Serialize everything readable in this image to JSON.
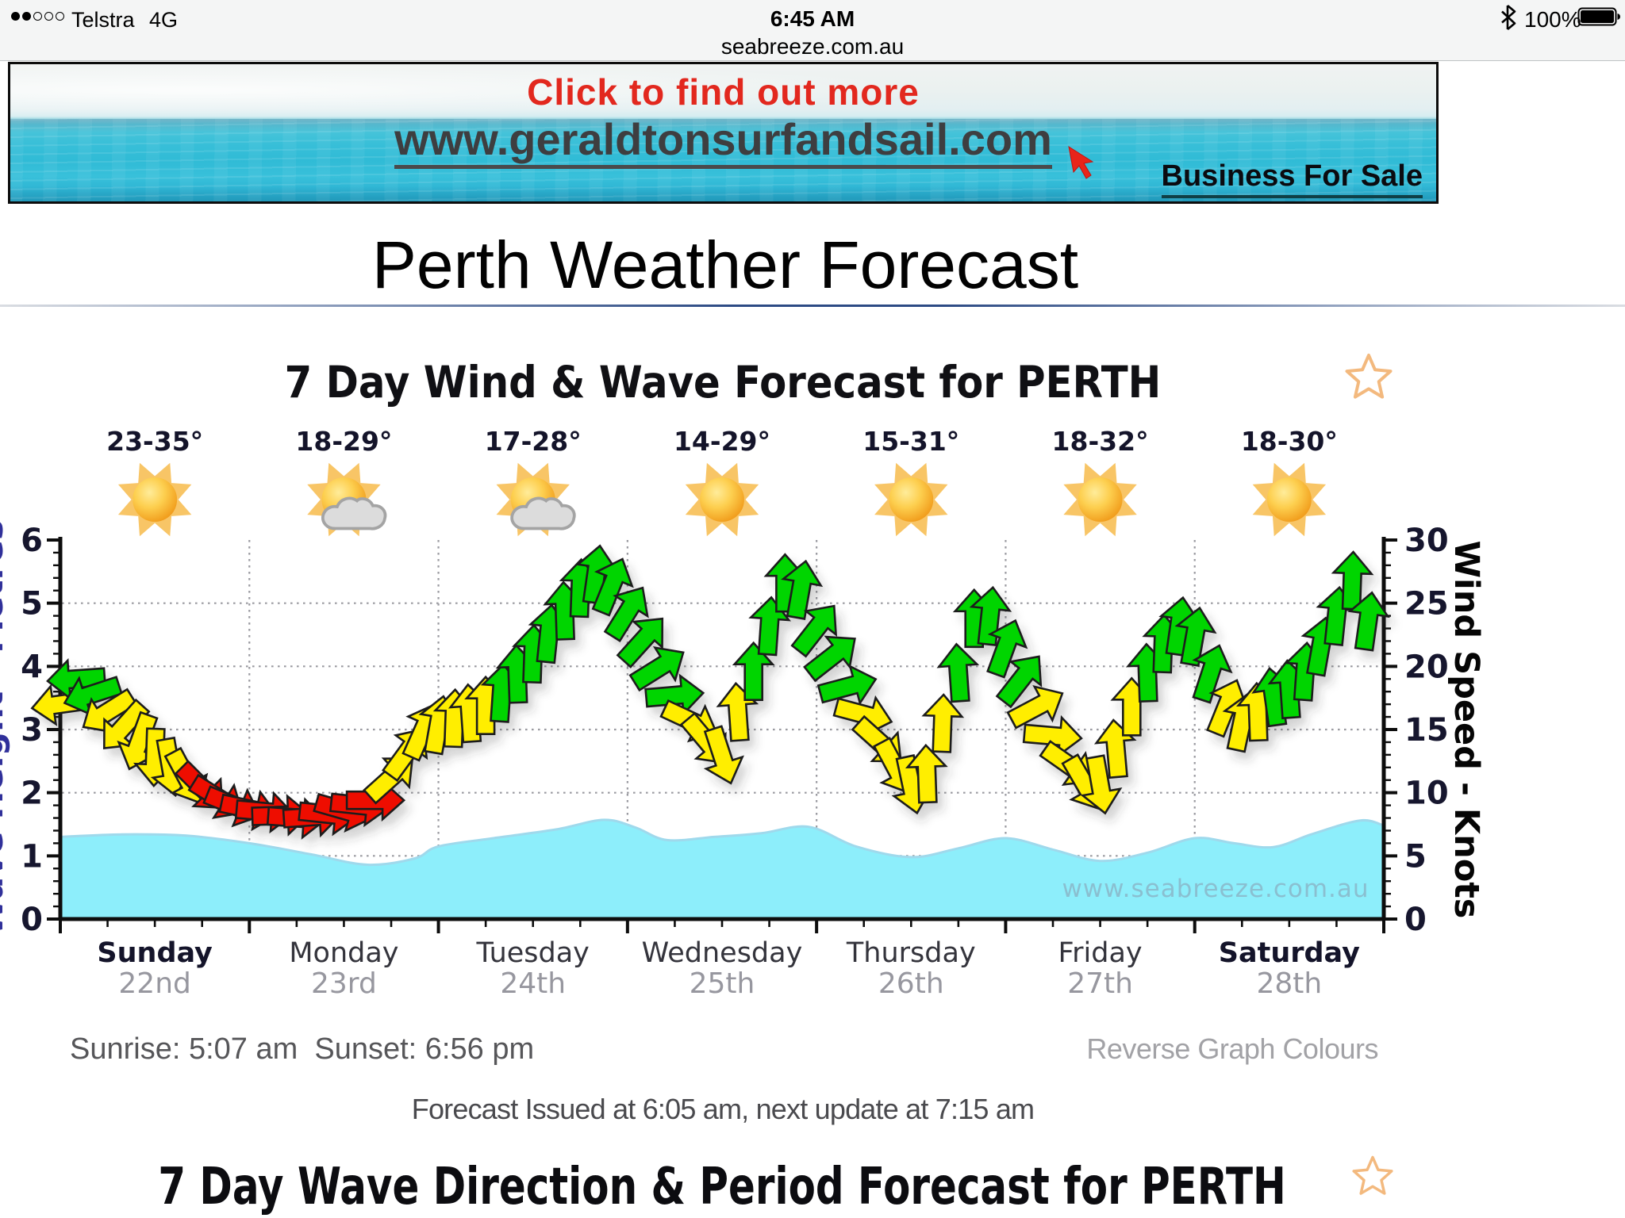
{
  "status_bar": {
    "carrier": "Telstra",
    "network": "4G",
    "time": "6:45 AM",
    "url": "seabreeze.com.au",
    "battery_percent": "100%",
    "signal": {
      "filled": 2,
      "total": 5
    }
  },
  "banner": {
    "line1": "Click to find out more",
    "line2": "www.geraldtonsurfandsail.com",
    "line3": "Business For Sale"
  },
  "page": {
    "title": "Perth Weather Forecast"
  },
  "forecast_section": {
    "sunrise_sunset": "Sunrise: 5:07 am  Sunset: 6:56 pm",
    "reverse_link": "Reverse Graph Colours",
    "issued": "Forecast Issued at 6:05 am, next update at 7:15 am"
  },
  "next_section": {
    "title": "7 Day Wave Direction & Period Forecast for PERTH"
  },
  "chart_data": {
    "type": "wind_wave_forecast",
    "title": "7 Day Wind & Wave Forecast for PERTH",
    "watermark": "www.seabreeze.com.au",
    "days": [
      {
        "name": "Sunday",
        "date": "22nd",
        "temp": "23-35°",
        "icon": "sunny",
        "weekend": true
      },
      {
        "name": "Monday",
        "date": "23rd",
        "temp": "18-29°",
        "icon": "partly-cloudy",
        "weekend": false
      },
      {
        "name": "Tuesday",
        "date": "24th",
        "temp": "17-28°",
        "icon": "partly-cloudy",
        "weekend": false
      },
      {
        "name": "Wednesday",
        "date": "25th",
        "temp": "14-29°",
        "icon": "sunny",
        "weekend": false
      },
      {
        "name": "Thursday",
        "date": "26th",
        "temp": "15-31°",
        "icon": "sunny",
        "weekend": false
      },
      {
        "name": "Friday",
        "date": "27th",
        "temp": "18-32°",
        "icon": "sunny",
        "weekend": false
      },
      {
        "name": "Saturday",
        "date": "28th",
        "temp": "18-30°",
        "icon": "sunny",
        "weekend": true
      }
    ],
    "y_left": {
      "label": "Wave Height - Metres",
      "unit": "m",
      "min": 0,
      "max": 6,
      "ticks": [
        0,
        1,
        2,
        3,
        4,
        5,
        6
      ]
    },
    "y_right": {
      "label": "Wind Speed - Knots",
      "unit": "knots",
      "min": 0,
      "max": 30,
      "ticks": [
        0,
        5,
        10,
        15,
        20,
        25,
        30
      ]
    },
    "wind": {
      "step_hours": 2,
      "knots": [
        17.0,
        19.0,
        17.8,
        16.4,
        15.2,
        14.0,
        12.8,
        12.0,
        11.2,
        10.4,
        9.6,
        9.0,
        8.7,
        8.5,
        8.2,
        8.0,
        8.1,
        8.3,
        8.6,
        9.0,
        9.4,
        11.2,
        13.2,
        14.9,
        15.4,
        15.9,
        16.3,
        16.9,
        17.9,
        19.4,
        21.0,
        22.6,
        24.4,
        26.2,
        27.3,
        26.4,
        24.3,
        22.1,
        19.9,
        17.7,
        15.7,
        14.1,
        12.9,
        16.4,
        19.6,
        23.2,
        26.6,
        26.1,
        23.0,
        20.8,
        18.4,
        16.2,
        14.0,
        12.0,
        10.6,
        11.5,
        15.5,
        19.5,
        23.8,
        24.0,
        21.5,
        19.0,
        16.8,
        14.5,
        12.2,
        10.7,
        10.6,
        13.5,
        16.8,
        19.5,
        21.8,
        23.2,
        22.4,
        19.5,
        16.8,
        15.6,
        16.4,
        17.6,
        18.2,
        19.6,
        21.6,
        24.0,
        26.8,
        23.6
      ],
      "dir_deg": [
        262,
        266,
        252,
        238,
        222,
        200,
        182,
        170,
        152,
        135,
        122,
        112,
        102,
        95,
        88,
        94,
        86,
        96,
        106,
        96,
        90,
        48,
        36,
        24,
        10,
        2,
        356,
        0,
        4,
        358,
        2,
        6,
        358,
        2,
        8,
        22,
        32,
        42,
        58,
        85,
        115,
        140,
        162,
        356,
        0,
        4,
        0,
        10,
        38,
        52,
        75,
        105,
        132,
        152,
        168,
        358,
        2,
        356,
        0,
        6,
        20,
        38,
        62,
        95,
        125,
        150,
        170,
        355,
        0,
        358,
        2,
        8,
        10,
        18,
        22,
        12,
        358,
        352,
        356,
        4,
        10,
        6,
        2,
        8
      ]
    },
    "wave_m": [
      [
        0,
        1.3
      ],
      [
        8,
        1.34
      ],
      [
        16,
        1.32
      ],
      [
        24,
        1.2
      ],
      [
        32,
        1.02
      ],
      [
        39,
        0.86
      ],
      [
        45,
        0.96
      ],
      [
        48,
        1.15
      ],
      [
        55,
        1.28
      ],
      [
        63,
        1.42
      ],
      [
        69,
        1.57
      ],
      [
        73,
        1.45
      ],
      [
        77,
        1.25
      ],
      [
        83,
        1.3
      ],
      [
        89,
        1.36
      ],
      [
        95,
        1.46
      ],
      [
        101,
        1.15
      ],
      [
        108,
        0.98
      ],
      [
        114,
        1.12
      ],
      [
        120,
        1.28
      ],
      [
        126,
        1.1
      ],
      [
        132,
        0.92
      ],
      [
        138,
        1.05
      ],
      [
        144,
        1.28
      ],
      [
        149,
        1.2
      ],
      [
        154,
        1.14
      ],
      [
        159,
        1.35
      ],
      [
        165,
        1.56
      ],
      [
        168,
        1.48
      ]
    ],
    "thresholds": {
      "red_below": 10.5,
      "green_from": 17.5
    },
    "colors": {
      "green": "#00d500",
      "yellow": "#ffee00",
      "red": "#ee1100",
      "wave": "#8deefb",
      "wave_edge": "#9fd9ec",
      "grid": "#9a9aa0"
    }
  }
}
